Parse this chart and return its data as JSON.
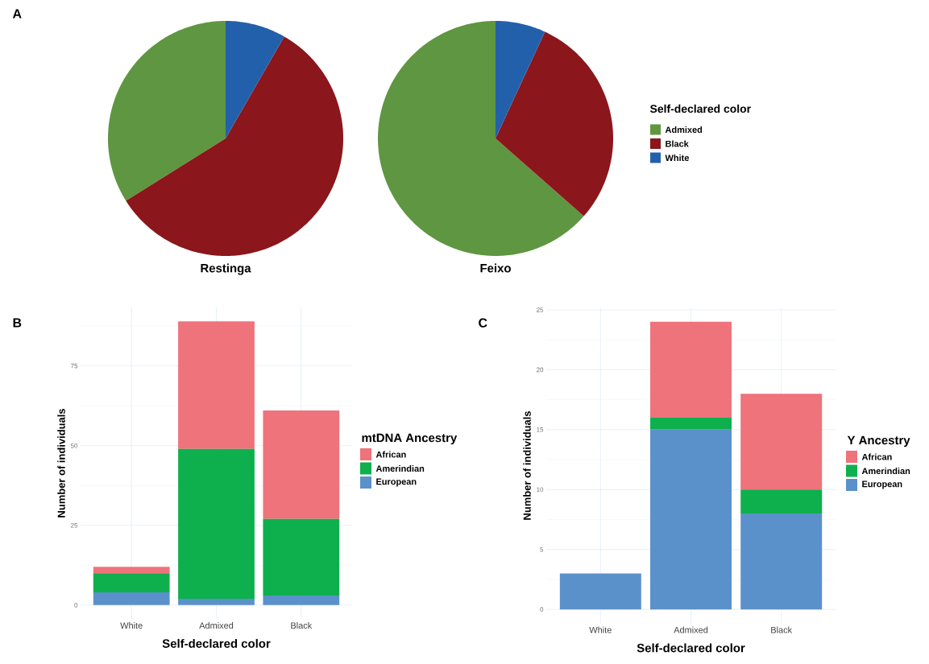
{
  "chart_data": [
    {
      "type": "pie",
      "title": "Restinga",
      "categories": [
        null,
        null,
        null
      ],
      "values": [
        33.9,
        57.8,
        8.3
      ],
      "colors": [
        "#5f9641",
        "#8b161b",
        "#2360ab"
      ],
      "annotations": [
        "A"
      ]
    },
    {
      "type": "pie",
      "title": "Feixo",
      "categories": [
        "Admixed",
        "Black",
        "White"
      ],
      "values": [
        63.5,
        29.6,
        6.9
      ],
      "colors": [
        "#5f9641",
        "#8b161b",
        "#2360ab"
      ],
      "legend": "right",
      "legend_title": "Self-declared color"
    },
    {
      "type": "bar",
      "stacked": true,
      "categories": [
        "White",
        "Admixed",
        "Black"
      ],
      "xlabel": "Self-declared color",
      "ylabel": "Number of individuals",
      "ylim": [
        -4.45,
        93.45
      ],
      "yticks": [
        0,
        25,
        50,
        75
      ],
      "grid": true,
      "legend": "right",
      "legend_title": "mtDNA Ancestry",
      "annotations": [
        "B"
      ],
      "series": [
        {
          "name": "European",
          "color": "#5b91cb",
          "values": [
            4,
            2,
            3
          ]
        },
        {
          "name": "Amerindian",
          "color": "#0eb04d",
          "values": [
            6,
            47,
            24
          ]
        },
        {
          "name": "African",
          "color": "#ee737b",
          "values": [
            2,
            40,
            34
          ]
        }
      ]
    },
    {
      "type": "bar",
      "stacked": true,
      "categories": [
        "White",
        "Admixed",
        "Black"
      ],
      "xlabel": "Self-declared color",
      "ylabel": "Number of individuals",
      "ylim": [
        -1.2,
        25.2
      ],
      "yticks": [
        0,
        5,
        10,
        15,
        20,
        25
      ],
      "grid": true,
      "legend": "right",
      "legend_title": "Y Ancestry",
      "annotations": [
        "C"
      ],
      "series": [
        {
          "name": "European",
          "color": "#5b91cb",
          "values": [
            3,
            15,
            8
          ]
        },
        {
          "name": "Amerindian",
          "color": "#0eb04d",
          "values": [
            0,
            1,
            2
          ]
        },
        {
          "name": "African",
          "color": "#ee737b",
          "values": [
            0,
            8,
            8
          ]
        }
      ]
    }
  ]
}
